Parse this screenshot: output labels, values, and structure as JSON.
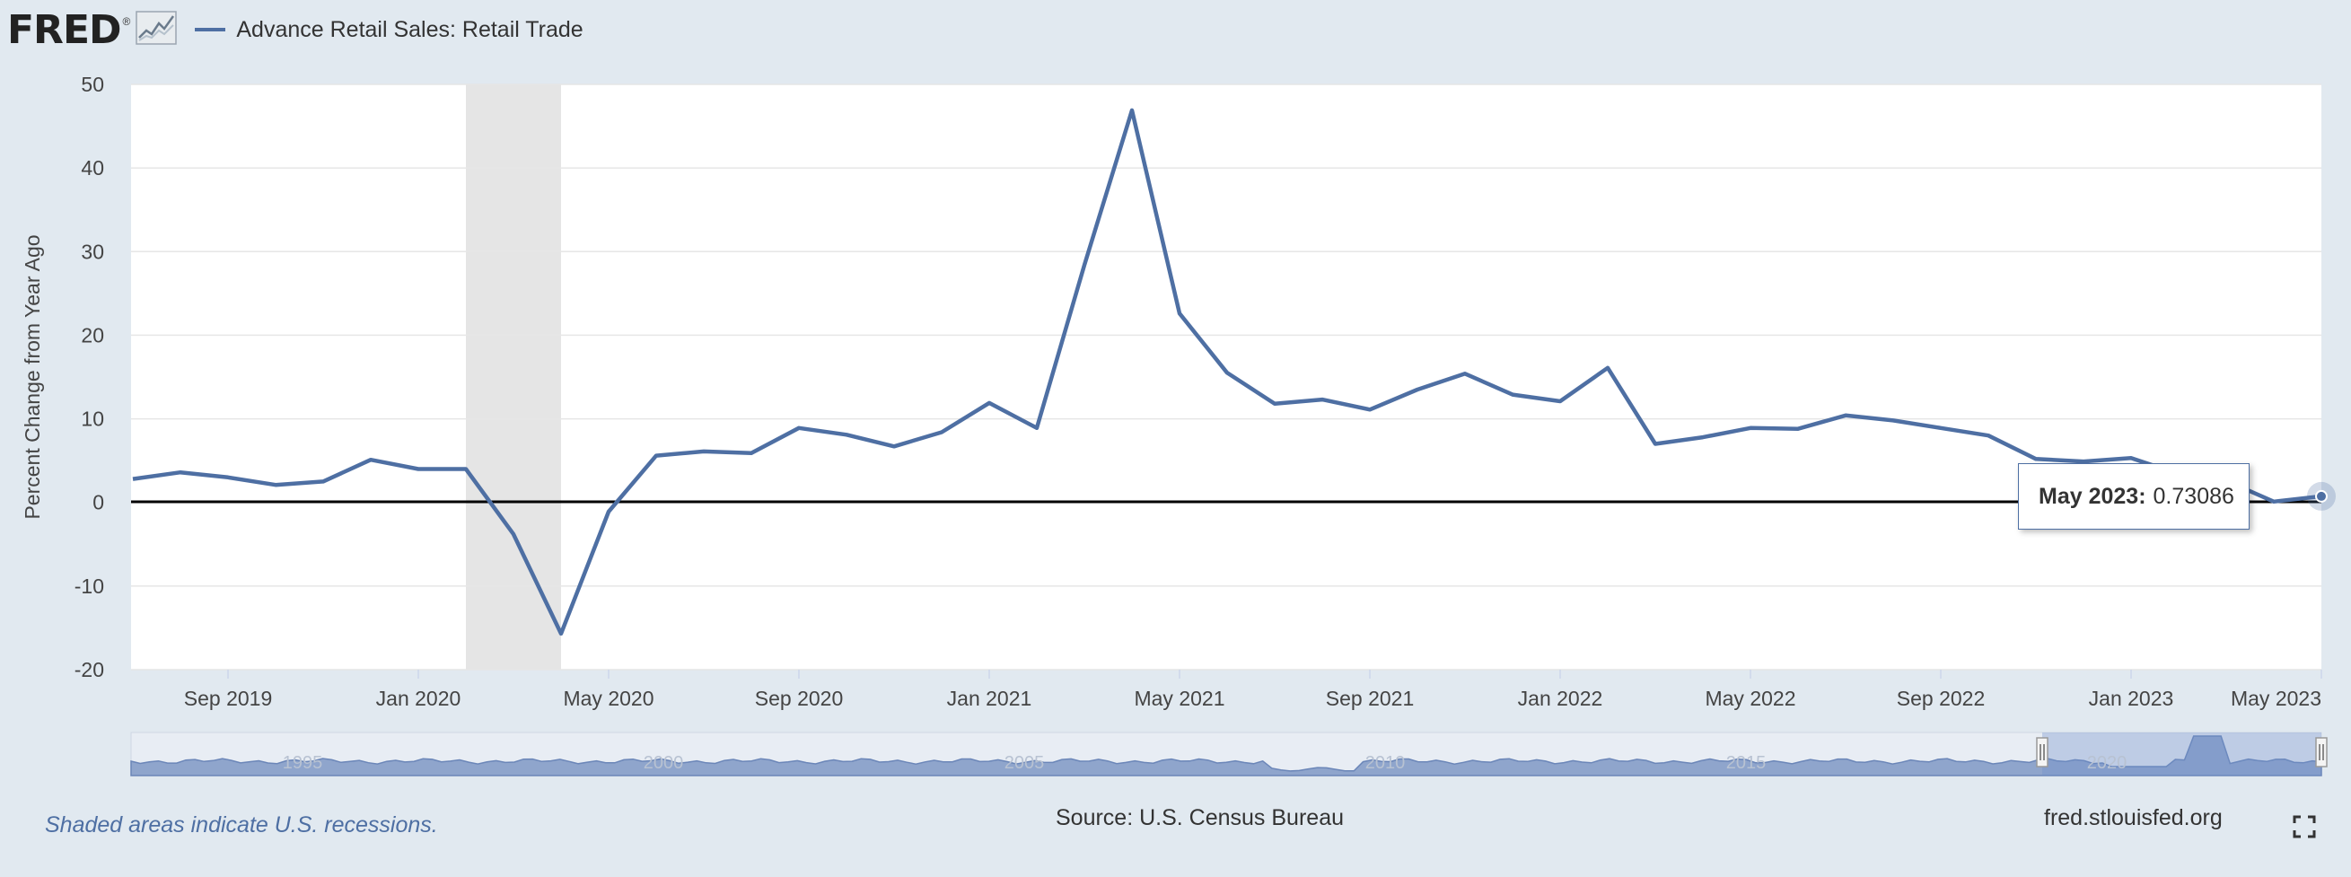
{
  "header": {
    "logo_text": "FRED",
    "logo_reg": "®",
    "legend_label": "Advance Retail Sales: Retail Trade"
  },
  "colors": {
    "line": "#4e6fa3",
    "recession": "#e5e5e5",
    "background": "#e1e9f0",
    "navigator_fill": "#8fa5cc"
  },
  "chart_data": {
    "type": "line",
    "title": "",
    "xlabel": "",
    "ylabel": "Percent Change from Year Ago",
    "ylim": [
      -20,
      50
    ],
    "y_ticks": [
      50,
      40,
      30,
      20,
      10,
      0,
      -10,
      -20
    ],
    "x_ticks": [
      "Sep 2019",
      "Jan 2020",
      "May 2020",
      "Sep 2020",
      "Jan 2021",
      "May 2021",
      "Sep 2021",
      "Jan 2022",
      "May 2022",
      "Sep 2022",
      "Jan 2023",
      "May 2023"
    ],
    "recession_shading": {
      "start": "2020-02",
      "end": "2020-04"
    },
    "series": [
      {
        "name": "Advance Retail Sales: Retail Trade",
        "x": [
          "2019-07",
          "2019-08",
          "2019-09",
          "2019-10",
          "2019-11",
          "2019-12",
          "2020-01",
          "2020-02",
          "2020-03",
          "2020-04",
          "2020-05",
          "2020-06",
          "2020-07",
          "2020-08",
          "2020-09",
          "2020-10",
          "2020-11",
          "2020-12",
          "2021-01",
          "2021-02",
          "2021-03",
          "2021-04",
          "2021-05",
          "2021-06",
          "2021-07",
          "2021-08",
          "2021-09",
          "2021-10",
          "2021-11",
          "2021-12",
          "2022-01",
          "2022-02",
          "2022-03",
          "2022-04",
          "2022-05",
          "2022-06",
          "2022-07",
          "2022-08",
          "2022-09",
          "2022-10",
          "2022-11",
          "2022-12",
          "2023-01",
          "2023-02",
          "2023-03",
          "2023-04",
          "2023-05"
        ],
        "values": [
          2.8,
          3.6,
          3.0,
          2.1,
          2.5,
          5.1,
          4.0,
          4.0,
          -3.8,
          -15.7,
          -1.1,
          5.6,
          6.1,
          5.9,
          8.9,
          8.1,
          6.7,
          8.4,
          11.9,
          8.9,
          28.4,
          46.9,
          22.6,
          15.5,
          11.8,
          12.3,
          11.1,
          13.5,
          15.4,
          12.9,
          12.1,
          16.1,
          7.0,
          7.8,
          8.9,
          8.8,
          10.4,
          9.8,
          8.9,
          8.0,
          5.2,
          4.9,
          5.3,
          3.4,
          2.6,
          0.1,
          0.73086
        ]
      }
    ],
    "navigator": {
      "tick_labels": [
        "1995",
        "2000",
        "2005",
        "2010",
        "2015",
        "2020"
      ]
    },
    "tooltip": {
      "date": "May 2023:",
      "value": "0.73086"
    }
  },
  "footer": {
    "recession_note": "Shaded areas indicate U.S. recessions.",
    "source": "Source: U.S. Census Bureau",
    "site": "fred.stlouisfed.org"
  }
}
